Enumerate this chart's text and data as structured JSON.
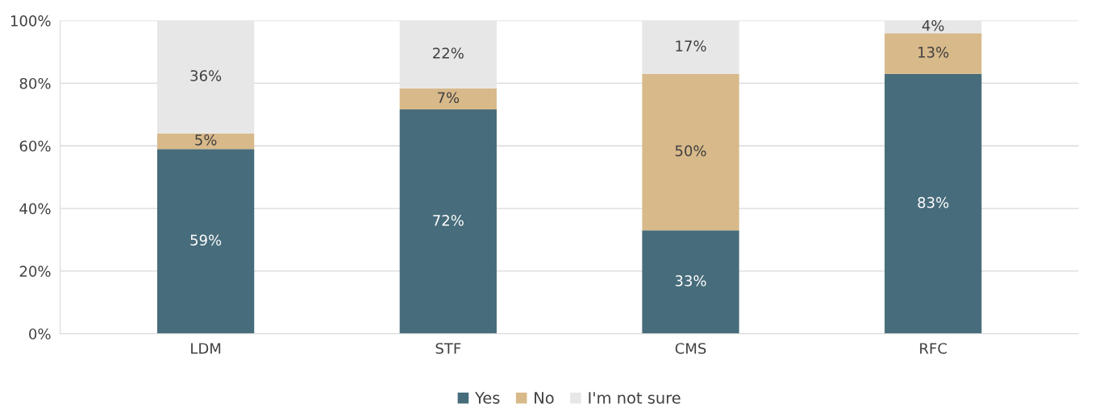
{
  "chart_data": {
    "type": "bar",
    "stacked": true,
    "categories": [
      "LDM",
      "STF",
      "CMS",
      "RFC"
    ],
    "series": [
      {
        "name": "Yes",
        "color": "#476c7b",
        "values": [
          59,
          71.6,
          33,
          83
        ],
        "value_labels": [
          "59%",
          "72%",
          "33%",
          "83%"
        ]
      },
      {
        "name": "No",
        "color": "#d8b98a",
        "values": [
          5,
          6.8,
          50,
          13
        ],
        "value_labels": [
          "5%",
          "7%",
          "50%",
          "13%"
        ]
      },
      {
        "name": "I'm not sure",
        "color": "#e7e7e7",
        "values": [
          36,
          21.6,
          17,
          4
        ],
        "value_labels": [
          "36%",
          "22%",
          "17%",
          "4%"
        ]
      }
    ],
    "ylim": [
      0,
      100
    ],
    "yticks": [
      {
        "value": 0,
        "label": "0%"
      },
      {
        "value": 20,
        "label": "20%"
      },
      {
        "value": 40,
        "label": "40%"
      },
      {
        "value": 60,
        "label": "60%"
      },
      {
        "value": 80,
        "label": "80%"
      },
      {
        "value": 100,
        "label": "100%"
      }
    ],
    "grid": "y",
    "legend": "bottom"
  }
}
